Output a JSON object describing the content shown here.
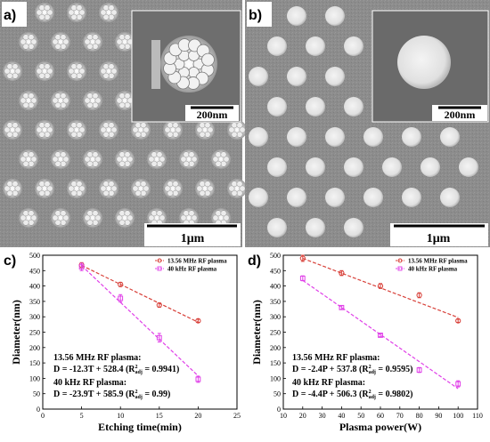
{
  "figure": {
    "panel_a": {
      "letter": "a)",
      "inset_scale": "200nm",
      "main_scale": "1μm"
    },
    "panel_b": {
      "letter": "b)",
      "inset_scale": "200nm",
      "main_scale": "1μm"
    },
    "panel_c": {
      "letter": "c)"
    },
    "panel_d": {
      "letter": "d)"
    }
  },
  "colors": {
    "sem_background": "#8a8a8a",
    "red_series": "#d8413a",
    "magenta_series": "#e040e8"
  },
  "chart_data": [
    {
      "type": "scatter",
      "panel": "c",
      "xlabel": "Etching time(min)",
      "ylabel": "Diameter(nm)",
      "xlim": [
        0,
        25
      ],
      "ylim": [
        0,
        500
      ],
      "xticks": [
        0,
        5,
        10,
        15,
        20,
        25
      ],
      "yticks": [
        0,
        50,
        100,
        150,
        200,
        250,
        300,
        350,
        400,
        450,
        500
      ],
      "legend_position": "top-right",
      "series": [
        {
          "name": "13.56 MHz RF plasma",
          "color": "#d8413a",
          "x": [
            5,
            10,
            15,
            20
          ],
          "y": [
            468,
            405,
            338,
            287
          ],
          "err": [
            8,
            7,
            7,
            5
          ],
          "fit": {
            "slope": -12.3,
            "intercept": 528.4,
            "x_range": [
              5,
              20
            ]
          }
        },
        {
          "name": "40 kHz RF plasma",
          "color": "#e040e8",
          "x": [
            5,
            10,
            15,
            20
          ],
          "y": [
            462,
            360,
            232,
            97
          ],
          "err": [
            12,
            12,
            14,
            10
          ],
          "fit": {
            "slope": -23.9,
            "intercept": 585.9,
            "x_range": [
              5,
              20
            ]
          }
        }
      ],
      "annotations": [
        {
          "line1": "13.56 MHz RF plasma:",
          "eq_main": "D = -12.3T + 528.4 (R",
          "eq_sup": "2",
          "eq_sub": "adj",
          "eq_end": " = 0.9941)"
        },
        {
          "line1": "40 kHz RF plasma:",
          "eq_main": "D = -23.9T + 585.9 (R",
          "eq_sup": "2",
          "eq_sub": "adj",
          "eq_end": " = 0.99)"
        }
      ]
    },
    {
      "type": "scatter",
      "panel": "d",
      "xlabel": "Plasma power(W)",
      "ylabel": "Diameter(nm)",
      "xlim": [
        10,
        110
      ],
      "ylim": [
        0,
        500
      ],
      "xticks": [
        10,
        20,
        30,
        40,
        50,
        60,
        70,
        80,
        90,
        100,
        110
      ],
      "yticks": [
        0,
        50,
        100,
        150,
        200,
        250,
        300,
        350,
        400,
        450,
        500
      ],
      "legend_position": "top-right",
      "series": [
        {
          "name": "13.56 MHz RF plasma",
          "color": "#d8413a",
          "x": [
            20,
            40,
            60,
            80,
            100
          ],
          "y": [
            490,
            442,
            400,
            370,
            287
          ],
          "err": [
            10,
            8,
            8,
            8,
            5
          ],
          "fit": {
            "slope": -2.4,
            "intercept": 537.8,
            "x_range": [
              20,
              100
            ]
          }
        },
        {
          "name": "40 kHz RF plasma",
          "color": "#e040e8",
          "x": [
            20,
            40,
            60,
            80,
            100
          ],
          "y": [
            425,
            330,
            240,
            127,
            82
          ],
          "err": [
            8,
            6,
            5,
            8,
            10
          ],
          "fit": {
            "slope": -4.4,
            "intercept": 506.3,
            "x_range": [
              20,
              100
            ]
          }
        }
      ],
      "annotations": [
        {
          "line1": "13.56 MHz RF plasma:",
          "eq_main": "D = -2.4P + 537.8 (R",
          "eq_sup": "2",
          "eq_sub": "adj",
          "eq_end": " = 0.9595)"
        },
        {
          "line1": "40 kHz RF plasma:",
          "eq_main": "D = -4.4P + 506.3 (R",
          "eq_sup": "2",
          "eq_sub": "adj",
          "eq_end": " = 0.9802)"
        }
      ]
    }
  ]
}
